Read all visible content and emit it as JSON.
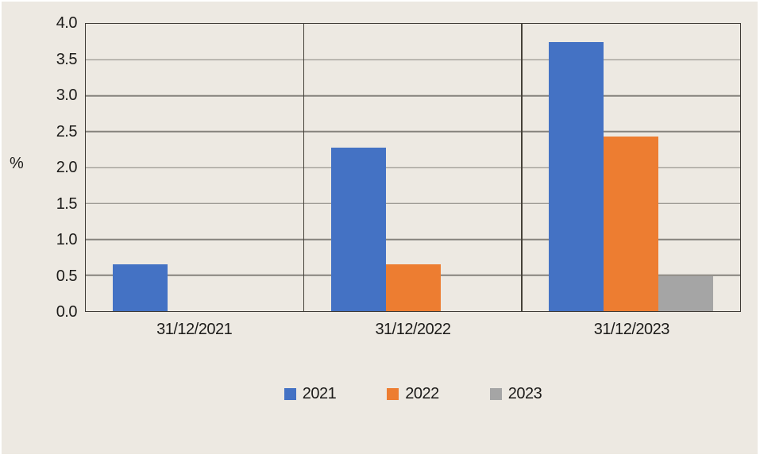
{
  "page": {
    "background": "#FFFFFF",
    "canvas_background": "#EDE9E2",
    "plot_border_color": "#3E3A35",
    "gridline_color": "#85827C",
    "text_color": "#1C1B19"
  },
  "chart_data": {
    "type": "bar",
    "title": "",
    "xlabel": "",
    "ylabel": "%",
    "categories": [
      "31/12/2021",
      "31/12/2022",
      "31/12/2023"
    ],
    "series": [
      {
        "name": "2021",
        "color": "#4472C4",
        "values": [
          0.65,
          2.28,
          3.75
        ]
      },
      {
        "name": "2022",
        "color": "#ED7D31",
        "values": [
          null,
          0.65,
          2.43
        ]
      },
      {
        "name": "2023",
        "color": "#A5A5A5",
        "values": [
          null,
          null,
          0.49
        ]
      }
    ],
    "ylim": [
      0,
      4.0
    ],
    "ytick_step": 0.5,
    "ytick_labels": [
      "0.0",
      "0.5",
      "1.0",
      "1.5",
      "2.0",
      "2.5",
      "3.0",
      "3.5",
      "4.0"
    ],
    "grid": "horizontal",
    "legend_position": "bottom",
    "legend_entries": [
      "2021",
      "2022",
      "2023"
    ]
  }
}
